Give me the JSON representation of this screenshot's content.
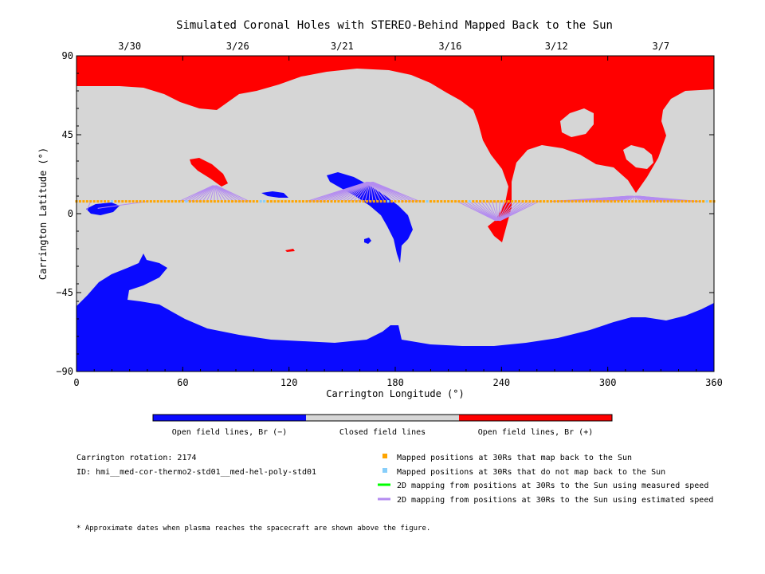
{
  "chart_data": {
    "type": "map",
    "title": "Simulated Coronal Holes with STEREO-Behind Mapped Back to the Sun",
    "xlabel": "Carrington Longitude (°)",
    "ylabel": "Carrington Latitude (°)",
    "xlim": [
      0,
      360
    ],
    "ylim": [
      -90,
      90
    ],
    "x_ticks": [
      0,
      60,
      120,
      180,
      240,
      300,
      360
    ],
    "y_ticks": [
      90,
      45,
      0,
      -45,
      -90
    ],
    "top_date_ticks": [
      {
        "label": "3/30",
        "lon": 30
      },
      {
        "label": "3/26",
        "lon": 91
      },
      {
        "label": "3/21",
        "lon": 150
      },
      {
        "label": "3/16",
        "lon": 211
      },
      {
        "label": "3/12",
        "lon": 271
      },
      {
        "label": "3/7",
        "lon": 330
      }
    ],
    "colorbar": [
      {
        "label": "Open field lines, Br (−)",
        "color": "#0a0aff"
      },
      {
        "label": "Closed field lines",
        "color": "#d6d6d6"
      },
      {
        "label": "Open field lines, Br (+)",
        "color": "#ff0000"
      }
    ],
    "colors": {
      "negative": "#0a0aff",
      "closed": "#d6d6d6",
      "positive": "#ff0000",
      "mapped": "#ffa500",
      "unmapped": "#87cefa",
      "measured_line": "#00ff00",
      "estimated_line": "#b48cf0"
    },
    "mapped_latitude": 7,
    "unmapped_longitudes": [
      20,
      62,
      104,
      106,
      176,
      198,
      222,
      356
    ],
    "mapping_bundles": [
      {
        "target_lon": 78,
        "target_lat": 16,
        "lon_from": 58,
        "lon_to": 98
      },
      {
        "target_lon": 166,
        "target_lat": 18,
        "lon_from": 130,
        "lon_to": 195
      },
      {
        "target_lon": 238,
        "target_lat": -4,
        "lon_from": 215,
        "lon_to": 262
      },
      {
        "target_lon": 315,
        "target_lat": 10,
        "lon_from": 268,
        "lon_to": 352
      }
    ]
  },
  "legend": {
    "rotation": "Carrington rotation: 2174",
    "id": "ID: hmi__med-cor-thermo2-std01__med-hel-poly-std01",
    "items": [
      {
        "label": "Mapped positions at 30Rs that map back to the Sun",
        "color": "#ffa500"
      },
      {
        "label": "Mapped positions at 30Rs that do not map back to the Sun",
        "color": "#87cefa"
      },
      {
        "label": "2D mapping from positions at 30Rs to the Sun using measured speed",
        "color": "#00ff00"
      },
      {
        "label": "2D mapping from positions at 30Rs to the Sun using estimated speed",
        "color": "#b48cf0"
      }
    ],
    "footnote": "* Approximate dates when plasma reaches the spacecraft are shown above the figure."
  }
}
